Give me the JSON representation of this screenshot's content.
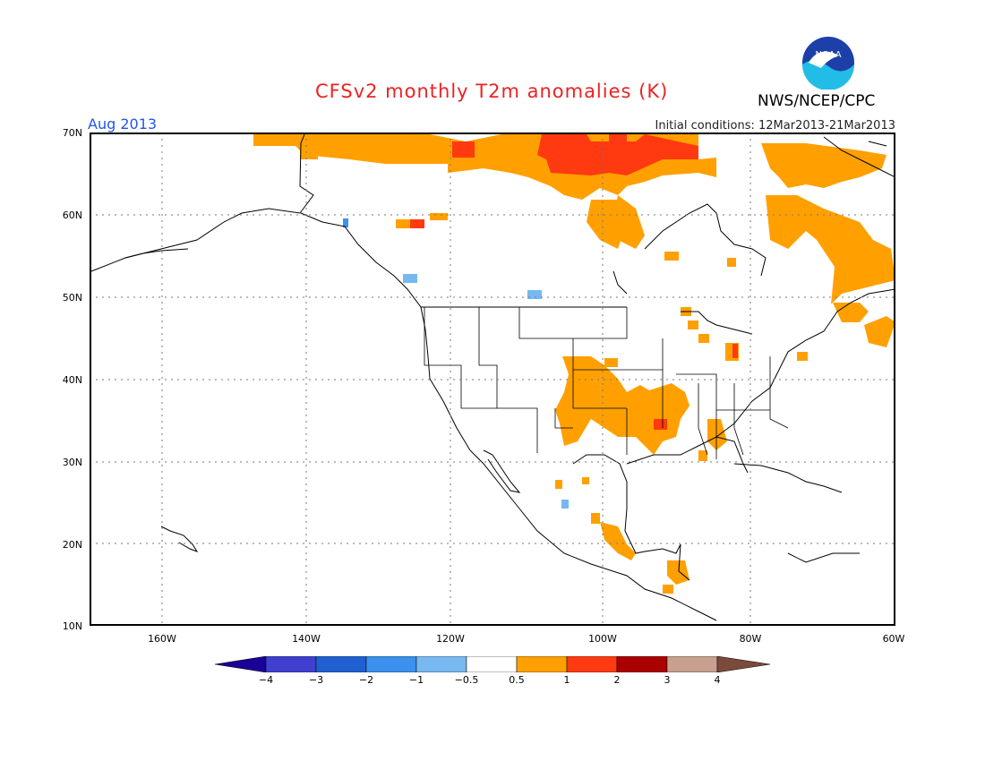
{
  "title": "CFSv2 monthly T2m anomalies (K)",
  "month": "Aug 2013",
  "initial_conditions": "Initial conditions: 12Mar2013-21Mar2013",
  "agency": "NWS/NCEP/CPC",
  "logo": {
    "text": "NOAA",
    "icon": "noaa-logo"
  },
  "map": {
    "projection": "lat-lon",
    "lon_range": [
      -172,
      -60
    ],
    "lat_range": [
      10,
      70
    ],
    "lat_labels": [
      "70N",
      "60N",
      "50N",
      "40N",
      "30N",
      "20N",
      "10N"
    ],
    "lon_labels": [
      "160W",
      "140W",
      "120W",
      "100W",
      "80W",
      "60W"
    ],
    "grid": "dotted"
  },
  "colorbar": {
    "labels": [
      "−4",
      "−3",
      "−2",
      "−1",
      "−0.5",
      "0.5",
      "1",
      "2",
      "3",
      "4"
    ],
    "colors": [
      "#1a0096",
      "#4040d0",
      "#2060d0",
      "#3c90ee",
      "#78b8f0",
      "#ffffff",
      "#ffa000",
      "#ff3a10",
      "#aa0000",
      "#c8a090",
      "#7a4a3a"
    ]
  },
  "anomaly_colors": {
    "0.5-1": "#ffa000",
    "1-2": "#ff3a10",
    "-0.5--1": "#78b8f0",
    "-1--2": "#3c90ee"
  }
}
